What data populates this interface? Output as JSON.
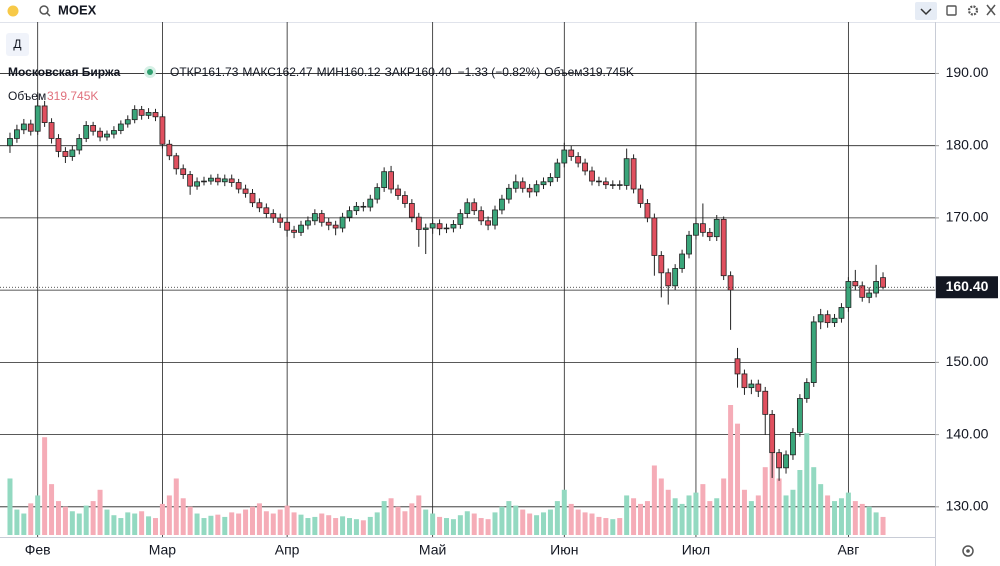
{
  "chart_data": {
    "type": "candlestick",
    "symbol": "MOEX",
    "interval": "Д",
    "name": "Московская Биржа",
    "legend": [
      {
        "label": "ОТКР",
        "value": "161.73"
      },
      {
        "label": "МАКС",
        "value": "162.47"
      },
      {
        "label": "МИН",
        "value": "160.12"
      },
      {
        "label": "ЗАКР",
        "value": "160.40"
      }
    ],
    "change": "−1.33 (−0.82%)",
    "volume_label": "Объем",
    "volume_value": "319.745K",
    "last_price": {
      "value": 160.4,
      "label": "160.40"
    },
    "up_color": "#3aa57a",
    "down_color": "#e0505f",
    "up_volume_color": "#93d9c1",
    "down_volume_color": "#f5acb7",
    "grid": true,
    "xlim": [
      -1.44,
      133.5
    ],
    "ylim": [
      126.1,
      197.4
    ],
    "xticks": [
      {
        "value": 4,
        "label": "Фев"
      },
      {
        "value": 22,
        "label": "Мар"
      },
      {
        "value": 40,
        "label": "Апр"
      },
      {
        "value": 61,
        "label": "Май"
      },
      {
        "value": 80,
        "label": "Июн"
      },
      {
        "value": 99,
        "label": "Июл"
      },
      {
        "value": 121,
        "label": "Авг"
      }
    ],
    "yticks": [
      {
        "value": 130,
        "label": "130.00"
      },
      {
        "value": 140,
        "label": "140.00"
      },
      {
        "value": 150,
        "label": "150.00"
      },
      {
        "value": 160,
        "label": "160.00"
      },
      {
        "value": 170,
        "label": "170.00"
      },
      {
        "value": 180,
        "label": "180.00"
      },
      {
        "value": 190,
        "label": "190.00"
      }
    ],
    "open": [
      180.0,
      181.0,
      182.2,
      183.0,
      182.0,
      185.5,
      183.2,
      181.0,
      179.2,
      178.5,
      179.4,
      181.0,
      182.8,
      182.0,
      181.2,
      181.6,
      182.1,
      183.0,
      183.6,
      185.0,
      184.2,
      184.6,
      184.0,
      180.2,
      178.6,
      176.8,
      176.0,
      174.4,
      175.0,
      175.1,
      175.5,
      175.0,
      175.4,
      174.9,
      174.0,
      173.4,
      172.1,
      171.4,
      170.6,
      170.0,
      169.4,
      168.3,
      168.0,
      169.0,
      169.6,
      170.6,
      169.4,
      169.0,
      168.6,
      170.1,
      171.0,
      171.6,
      171.5,
      172.6,
      174.2,
      176.4,
      174.0,
      173.1,
      172.0,
      170.1,
      168.4,
      168.6,
      169.2,
      168.5,
      168.6,
      169.1,
      170.6,
      172.1,
      171.0,
      169.6,
      169.0,
      171.1,
      172.6,
      174.1,
      175.0,
      174.1,
      173.6,
      174.6,
      175.0,
      175.6,
      177.6,
      179.4,
      178.5,
      177.6,
      176.5,
      175.1,
      175.0,
      174.6,
      174.6,
      174.5,
      178.2,
      174.0,
      172.0,
      170.0,
      164.8,
      162.4,
      160.6,
      163.0,
      165.0,
      167.6,
      169.2,
      168.0,
      167.4,
      169.8,
      162.0,
      150.5,
      148.4,
      146.5,
      147.0,
      146.0,
      142.8,
      137.5,
      135.4,
      137.2,
      140.3,
      145.0,
      147.2,
      155.6,
      156.6,
      155.5,
      156.1,
      157.6,
      161.2,
      160.6,
      159.0,
      159.6,
      161.73
    ],
    "high": [
      181.8,
      182.9,
      183.7,
      183.6,
      187.4,
      186.2,
      183.8,
      181.6,
      179.8,
      180.0,
      181.6,
      183.4,
      183.3,
      182.5,
      182.1,
      182.7,
      183.5,
      184.2,
      185.6,
      185.5,
      185.2,
      185.1,
      184.4,
      180.8,
      179.0,
      177.4,
      176.5,
      175.6,
      175.7,
      176.0,
      176.1,
      176.0,
      176.0,
      175.4,
      174.6,
      174.0,
      172.7,
      172.0,
      171.2,
      170.6,
      170.0,
      168.9,
      169.6,
      170.2,
      171.2,
      171.1,
      170.0,
      169.6,
      170.7,
      171.6,
      172.2,
      172.2,
      173.2,
      174.8,
      177.0,
      177.2,
      174.6,
      173.7,
      172.6,
      170.7,
      169.2,
      169.8,
      169.8,
      169.2,
      169.7,
      171.2,
      172.7,
      172.7,
      171.6,
      170.2,
      171.7,
      173.2,
      174.7,
      176.0,
      175.6,
      174.7,
      175.2,
      175.6,
      176.2,
      178.2,
      180.4,
      180.0,
      179.1,
      178.2,
      177.1,
      175.7,
      175.6,
      175.2,
      175.2,
      179.6,
      178.8,
      174.6,
      172.6,
      170.6,
      165.4,
      163.0,
      163.6,
      165.6,
      168.2,
      170.0,
      172.0,
      168.6,
      170.4,
      170.2,
      162.6,
      152.0,
      149.0,
      147.6,
      147.6,
      146.6,
      143.4,
      138.0,
      137.8,
      140.9,
      145.6,
      147.8,
      156.4,
      157.4,
      157.2,
      156.7,
      158.2,
      161.8,
      162.8,
      161.2,
      160.4,
      163.5,
      162.47
    ],
    "low": [
      179.0,
      180.4,
      181.6,
      181.4,
      181.5,
      182.6,
      180.3,
      178.4,
      177.6,
      177.9,
      178.8,
      180.5,
      181.4,
      180.6,
      180.7,
      181.0,
      181.6,
      182.5,
      183.1,
      183.6,
      183.7,
      183.4,
      179.6,
      178.0,
      176.0,
      175.4,
      173.2,
      173.9,
      174.5,
      174.6,
      174.5,
      174.4,
      174.3,
      173.4,
      172.8,
      171.5,
      170.8,
      170.0,
      169.3,
      168.6,
      167.4,
      167.2,
      167.5,
      168.4,
      169.0,
      168.8,
      168.3,
      167.6,
      168.0,
      169.5,
      170.4,
      170.9,
      170.9,
      172.0,
      173.6,
      173.4,
      172.5,
      171.4,
      169.4,
      166.0,
      165.0,
      167.8,
      167.6,
      167.9,
      168.0,
      168.5,
      170.0,
      170.4,
      169.0,
      168.3,
      168.4,
      170.5,
      172.0,
      173.5,
      173.5,
      172.8,
      173.0,
      174.0,
      174.4,
      175.0,
      177.0,
      177.9,
      177.0,
      175.9,
      174.5,
      174.4,
      174.0,
      174.0,
      173.9,
      173.9,
      173.4,
      171.4,
      169.4,
      162.0,
      159.0,
      158.0,
      160.0,
      162.4,
      164.4,
      167.0,
      167.4,
      166.8,
      166.8,
      161.4,
      154.5,
      146.5,
      145.5,
      145.6,
      145.2,
      140.0,
      134.0,
      133.6,
      134.6,
      136.5,
      139.7,
      144.4,
      146.6,
      154.6,
      154.8,
      154.9,
      155.5,
      157.0,
      160.0,
      158.4,
      158.2,
      159.0,
      160.12
    ],
    "close": [
      181.0,
      182.2,
      183.0,
      182.0,
      185.5,
      183.2,
      181.0,
      179.2,
      178.5,
      179.4,
      181.0,
      182.8,
      182.0,
      181.2,
      181.6,
      182.1,
      183.0,
      183.6,
      185.0,
      184.2,
      184.6,
      184.0,
      180.2,
      178.6,
      176.8,
      176.0,
      174.4,
      175.0,
      175.1,
      175.5,
      175.0,
      175.4,
      174.9,
      174.0,
      173.4,
      172.1,
      171.4,
      170.6,
      170.0,
      169.4,
      168.3,
      168.0,
      169.0,
      169.6,
      170.6,
      169.4,
      169.0,
      168.6,
      170.1,
      171.0,
      171.6,
      171.5,
      172.6,
      174.2,
      176.4,
      174.0,
      173.1,
      172.0,
      170.1,
      168.4,
      168.6,
      169.2,
      168.5,
      168.6,
      169.1,
      170.6,
      172.1,
      171.0,
      169.6,
      169.0,
      171.1,
      172.6,
      174.1,
      175.0,
      174.1,
      173.6,
      174.6,
      175.0,
      175.6,
      177.6,
      179.4,
      178.5,
      177.6,
      176.5,
      175.1,
      175.0,
      174.6,
      174.6,
      174.5,
      178.2,
      174.0,
      172.0,
      170.0,
      164.8,
      162.4,
      160.6,
      163.0,
      165.0,
      167.6,
      169.2,
      168.0,
      167.4,
      169.8,
      162.0,
      160.0,
      148.4,
      146.5,
      147.0,
      146.0,
      142.8,
      137.5,
      135.4,
      137.2,
      140.3,
      145.0,
      147.2,
      155.6,
      156.6,
      155.5,
      156.1,
      157.6,
      161.2,
      160.6,
      159.0,
      159.6,
      161.2,
      160.4
    ],
    "volume": [
      1000000,
      450000,
      380000,
      560000,
      700000,
      1730000,
      900000,
      600000,
      500000,
      420000,
      380000,
      520000,
      600000,
      800000,
      450000,
      350000,
      300000,
      400000,
      380000,
      420000,
      330000,
      300000,
      550000,
      700000,
      1000000,
      650000,
      500000,
      380000,
      300000,
      340000,
      360000,
      320000,
      400000,
      380000,
      450000,
      500000,
      560000,
      420000,
      380000,
      450000,
      520000,
      400000,
      360000,
      300000,
      320000,
      380000,
      350000,
      300000,
      330000,
      300000,
      280000,
      260000,
      320000,
      400000,
      600000,
      650000,
      500000,
      420000,
      560000,
      700000,
      450000,
      380000,
      320000,
      300000,
      280000,
      350000,
      420000,
      380000,
      300000,
      280000,
      400000,
      500000,
      600000,
      520000,
      450000,
      380000,
      350000,
      400000,
      450000,
      600000,
      800000,
      550000,
      450000,
      400000,
      380000,
      320000,
      300000,
      280000,
      300000,
      700000,
      650000,
      550000,
      600000,
      1230000,
      1000000,
      800000,
      650000,
      550000,
      700000,
      750000,
      900000,
      600000,
      650000,
      1000000,
      2300000,
      1970000,
      800000,
      600000,
      700000,
      1200000,
      1500000,
      1000000,
      700000,
      800000,
      1150000,
      1800000,
      1200000,
      900000,
      700000,
      600000,
      650000,
      750000,
      600000,
      550000,
      500000,
      400000,
      319745
    ]
  }
}
